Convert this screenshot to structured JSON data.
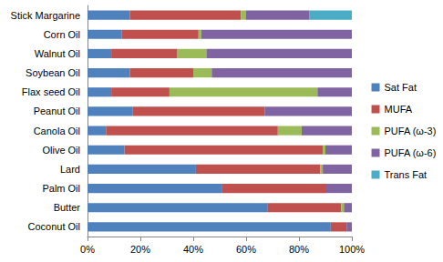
{
  "chart_data": {
    "type": "bar",
    "orientation": "horizontal",
    "stacked": true,
    "grid": false,
    "legend": "right",
    "categories": [
      "Stick Margarine",
      "Corn Oil",
      "Walnut Oil",
      "Soybean Oil",
      "Flax seed Oil",
      "Peanut Oil",
      "Canola Oil",
      "Olive Oil",
      "Lard",
      "Palm Oil",
      "Butter",
      "Coconut Oil"
    ],
    "series": [
      {
        "name": "Sat Fat",
        "color": "#4f81bd",
        "values": [
          16,
          13,
          9,
          16,
          9,
          17,
          7,
          14,
          41,
          51,
          68,
          92
        ]
      },
      {
        "name": "MUFA",
        "color": "#c0504d",
        "values": [
          42,
          29,
          25,
          24,
          22,
          50,
          65,
          75,
          47,
          39,
          28,
          6
        ]
      },
      {
        "name": "PUFA (ω-3)",
        "color": "#9bbb59",
        "values": [
          2,
          1,
          11,
          7,
          56,
          0,
          9,
          1,
          1,
          0,
          1,
          0
        ]
      },
      {
        "name": "PUFA (ω-6)",
        "color": "#8064a2",
        "values": [
          24,
          57,
          55,
          53,
          13,
          33,
          19,
          10,
          11,
          10,
          3,
          2
        ]
      },
      {
        "name": "Trans Fat",
        "color": "#4bacc6",
        "values": [
          16,
          0,
          0,
          0,
          0,
          0,
          0,
          0,
          0,
          0,
          0,
          0
        ]
      }
    ],
    "xlim": [
      0,
      100
    ],
    "xticks": [
      {
        "value": 0,
        "label": "0%"
      },
      {
        "value": 20,
        "label": "20%"
      },
      {
        "value": 40,
        "label": "40%"
      },
      {
        "value": 60,
        "label": "60%"
      },
      {
        "value": 80,
        "label": "80%"
      },
      {
        "value": 100,
        "label": "100%"
      }
    ]
  }
}
